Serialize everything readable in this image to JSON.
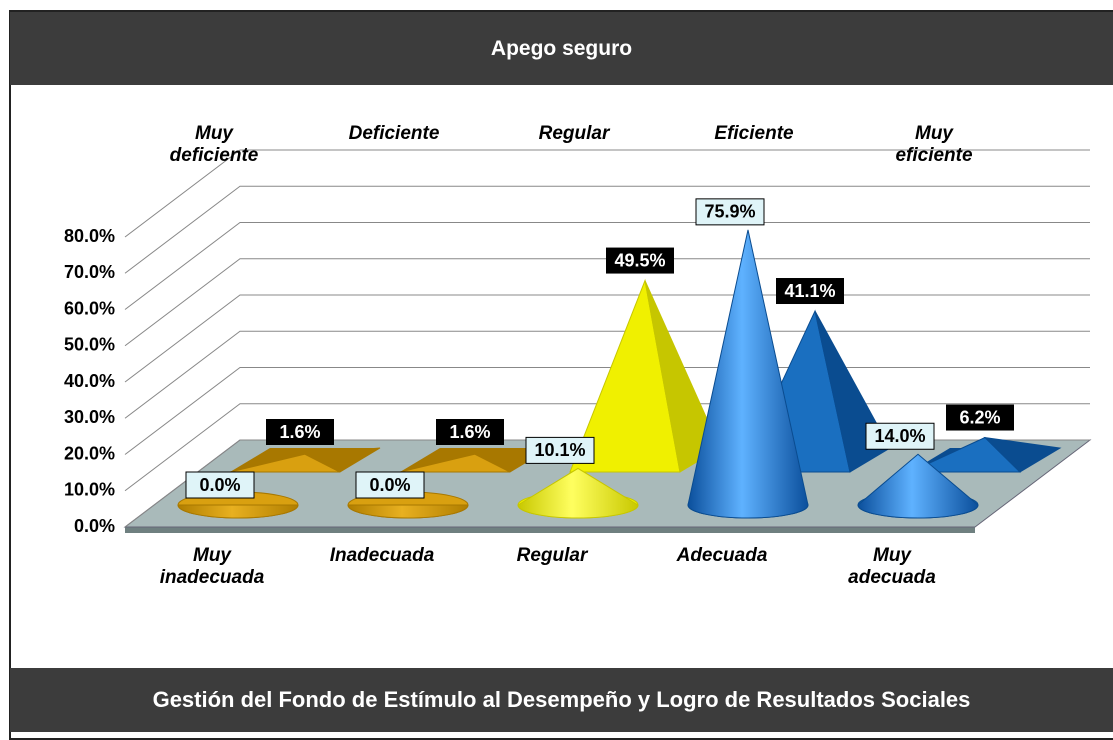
{
  "header": {
    "title": "Apego seguro"
  },
  "chart_data": {
    "type": "cone",
    "ylim": [
      0,
      80
    ],
    "yticks": [
      {
        "value": 0,
        "label": "0.0%"
      },
      {
        "value": 10,
        "label": "10.0%"
      },
      {
        "value": 20,
        "label": "20.0%"
      },
      {
        "value": 30,
        "label": "30.0%"
      },
      {
        "value": 40,
        "label": "40.0%"
      },
      {
        "value": 50,
        "label": "50.0%"
      },
      {
        "value": 60,
        "label": "60.0%"
      },
      {
        "value": 70,
        "label": "70.0%"
      },
      {
        "value": 80,
        "label": "80.0%"
      }
    ],
    "grid": true,
    "series": [
      {
        "shape": "pyramid",
        "color": "#d9a010",
        "categories": [
          "Muy deficiente",
          "Deficiente",
          "Regular",
          "Eficiente",
          "Muy eficiente"
        ],
        "values": [
          1.6,
          1.6,
          49.5,
          41.1,
          6.2
        ],
        "value_labels": [
          "1.6%",
          "1.6%",
          "49.5%",
          "41.1%",
          "6.2%"
        ],
        "colors": [
          "#d9a010",
          "#d9a010",
          "#f0f000",
          "#1a6fc0",
          "#1a6fc0"
        ]
      },
      {
        "shape": "cone",
        "color": "#d9a010",
        "categories": [
          "Muy inadecuada",
          "Inadecuada",
          "Regular",
          "Adecuada",
          "Muy adecuada"
        ],
        "values": [
          0.0,
          0.0,
          10.1,
          75.9,
          14.0
        ],
        "value_labels": [
          "0.0%",
          "0.0%",
          "10.1%",
          "75.9%",
          "14.0%"
        ],
        "colors": [
          "#d9a010",
          "#d9a010",
          "#f0f000",
          "#1a6fc0",
          "#1a6fc0"
        ]
      }
    ]
  },
  "footer": {
    "text": "Gestión  del Fondo de Estímulo al Desempeño y Logro de Resultados Sociales"
  }
}
